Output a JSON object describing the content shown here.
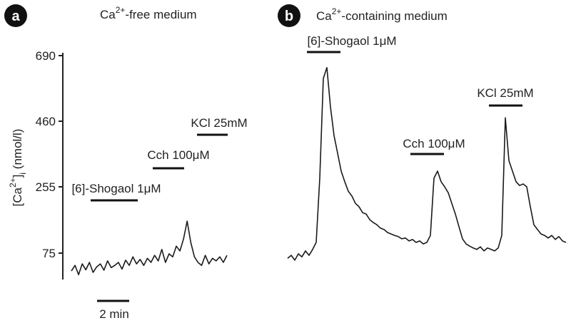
{
  "chart_data": [
    {
      "type": "line",
      "panel": "a",
      "title_parts": [
        "Ca",
        "2+",
        "-free medium"
      ],
      "ylabel_parts": [
        "[Ca",
        "2+",
        "]",
        "i",
        " (nmol/l)"
      ],
      "ylim": [
        0,
        690
      ],
      "yticks": [
        75,
        255,
        460,
        690
      ],
      "color": "#1a1a1a",
      "values": [
        27,
        42,
        17,
        46,
        30,
        50,
        23,
        38,
        46,
        29,
        54,
        36,
        42,
        50,
        32,
        56,
        42,
        65,
        46,
        58,
        42,
        61,
        50,
        69,
        54,
        85,
        50,
        73,
        65,
        94,
        81,
        114,
        162,
        104,
        65,
        50,
        42,
        69,
        46,
        61,
        54,
        65,
        50,
        69
      ],
      "annotations": [
        "[6]-Shogaol 1μM",
        "Cch 100μM",
        "KCl 25mM"
      ],
      "scale_bar": "2 min"
    },
    {
      "type": "line",
      "panel": "b",
      "title_parts": [
        "Ca",
        "2+",
        "-containing medium"
      ],
      "color": "#1a1a1a",
      "values": [
        61,
        69,
        56,
        73,
        65,
        81,
        69,
        85,
        104,
        282,
        610,
        648,
        510,
        415,
        360,
        304,
        271,
        243,
        230,
        210,
        201,
        185,
        181,
        166,
        158,
        152,
        143,
        139,
        131,
        127,
        123,
        120,
        114,
        116,
        108,
        112,
        104,
        108,
        100,
        104,
        123,
        282,
        304,
        271,
        255,
        239,
        210,
        181,
        147,
        114,
        100,
        94,
        89,
        85,
        92,
        81,
        89,
        85,
        81,
        89,
        123,
        472,
        337,
        304,
        271,
        259,
        264,
        255,
        201,
        152,
        139,
        127,
        123,
        116,
        123,
        112,
        120,
        108,
        104
      ],
      "annotations": [
        "[6]-Shogaol 1μM",
        "Cch 100μM",
        "KCl 25mM"
      ]
    }
  ]
}
